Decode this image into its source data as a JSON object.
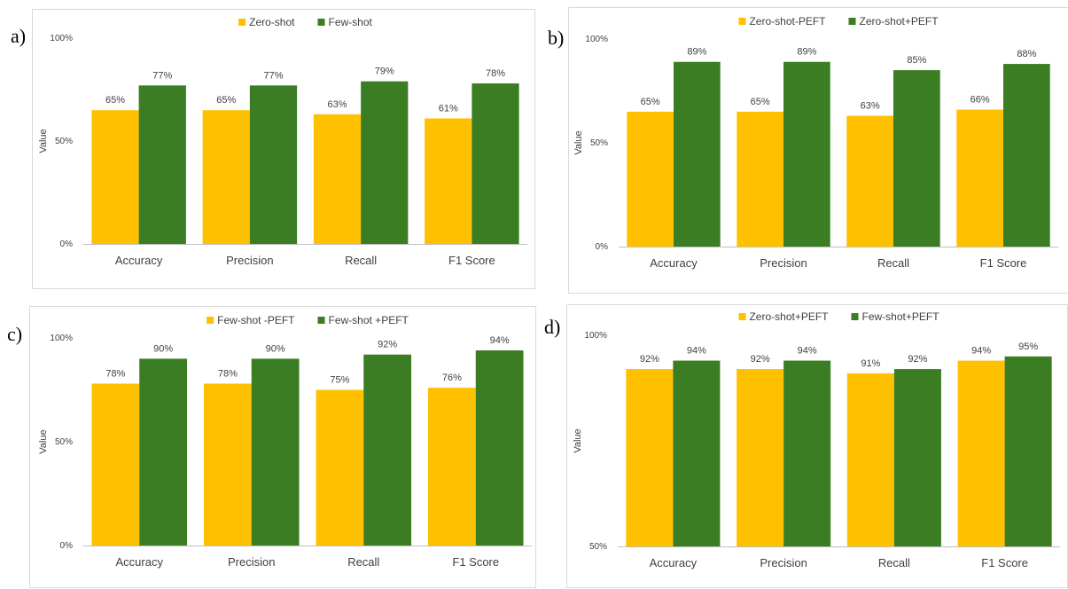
{
  "colors": {
    "series1": "#ffc000",
    "series2": "#3a7d22",
    "axis": "#bfbfbf",
    "text": "#404040"
  },
  "chart_data": [
    {
      "panel": "a)",
      "type": "bar",
      "categories": [
        "Accuracy",
        "Precision",
        "Recall",
        "F1 Score"
      ],
      "series": [
        {
          "name": "Zero-shot",
          "values": [
            65,
            65,
            63,
            61
          ]
        },
        {
          "name": "Few-shot",
          "values": [
            77,
            77,
            79,
            78
          ]
        }
      ],
      "ylabel": "Value",
      "ylim": [
        0,
        100
      ],
      "yticks": [
        0,
        50,
        100
      ],
      "ytick_labels": [
        "0%",
        "50%",
        "100%"
      ],
      "data_labels": [
        [
          "65%",
          "65%",
          "63%",
          "61%"
        ],
        [
          "77%",
          "77%",
          "79%",
          "78%"
        ]
      ],
      "legend": "top-center",
      "grid": false
    },
    {
      "panel": "b)",
      "type": "bar",
      "categories": [
        "Accuracy",
        "Precision",
        "Recall",
        "F1 Score"
      ],
      "series": [
        {
          "name": "Zero-shot-PEFT",
          "values": [
            65,
            65,
            63,
            66
          ]
        },
        {
          "name": "Zero-shot+PEFT",
          "values": [
            89,
            89,
            85,
            88
          ]
        }
      ],
      "ylabel": "Value",
      "ylim": [
        0,
        100
      ],
      "yticks": [
        0,
        50,
        100
      ],
      "ytick_labels": [
        "0%",
        "50%",
        "100%"
      ],
      "data_labels": [
        [
          "65%",
          "65%",
          "63%",
          "66%"
        ],
        [
          "89%",
          "89%",
          "85%",
          "88%"
        ]
      ],
      "legend": "top-center",
      "grid": false
    },
    {
      "panel": "c)",
      "type": "bar",
      "categories": [
        "Accuracy",
        "Precision",
        "Recall",
        "F1 Score"
      ],
      "series": [
        {
          "name": "Few-shot -PEFT",
          "values": [
            78,
            78,
            75,
            76
          ]
        },
        {
          "name": "Few-shot +PEFT",
          "values": [
            90,
            90,
            92,
            94
          ]
        }
      ],
      "ylabel": "Value",
      "ylim": [
        0,
        100
      ],
      "yticks": [
        0,
        50,
        100
      ],
      "ytick_labels": [
        "0%",
        "50%",
        "100%"
      ],
      "data_labels": [
        [
          "78%",
          "78%",
          "75%",
          "76%"
        ],
        [
          "90%",
          "90%",
          "92%",
          "94%"
        ]
      ],
      "legend": "top-center",
      "grid": false
    },
    {
      "panel": "d)",
      "type": "bar",
      "categories": [
        "Accuracy",
        "Precision",
        "Recall",
        "F1 Score"
      ],
      "series": [
        {
          "name": "Zero-shot+PEFT",
          "values": [
            92,
            92,
            91,
            94
          ]
        },
        {
          "name": "Few-shot+PEFT",
          "values": [
            94,
            94,
            92,
            95
          ]
        }
      ],
      "ylabel": "Value",
      "ylim": [
        50,
        100
      ],
      "yticks": [
        50,
        100
      ],
      "ytick_labels": [
        "50%",
        "100%"
      ],
      "data_labels": [
        [
          "92%",
          "92%",
          "91%",
          "94%"
        ],
        [
          "94%",
          "94%",
          "92%",
          "95%"
        ]
      ],
      "legend": "top-center",
      "grid": false
    }
  ]
}
